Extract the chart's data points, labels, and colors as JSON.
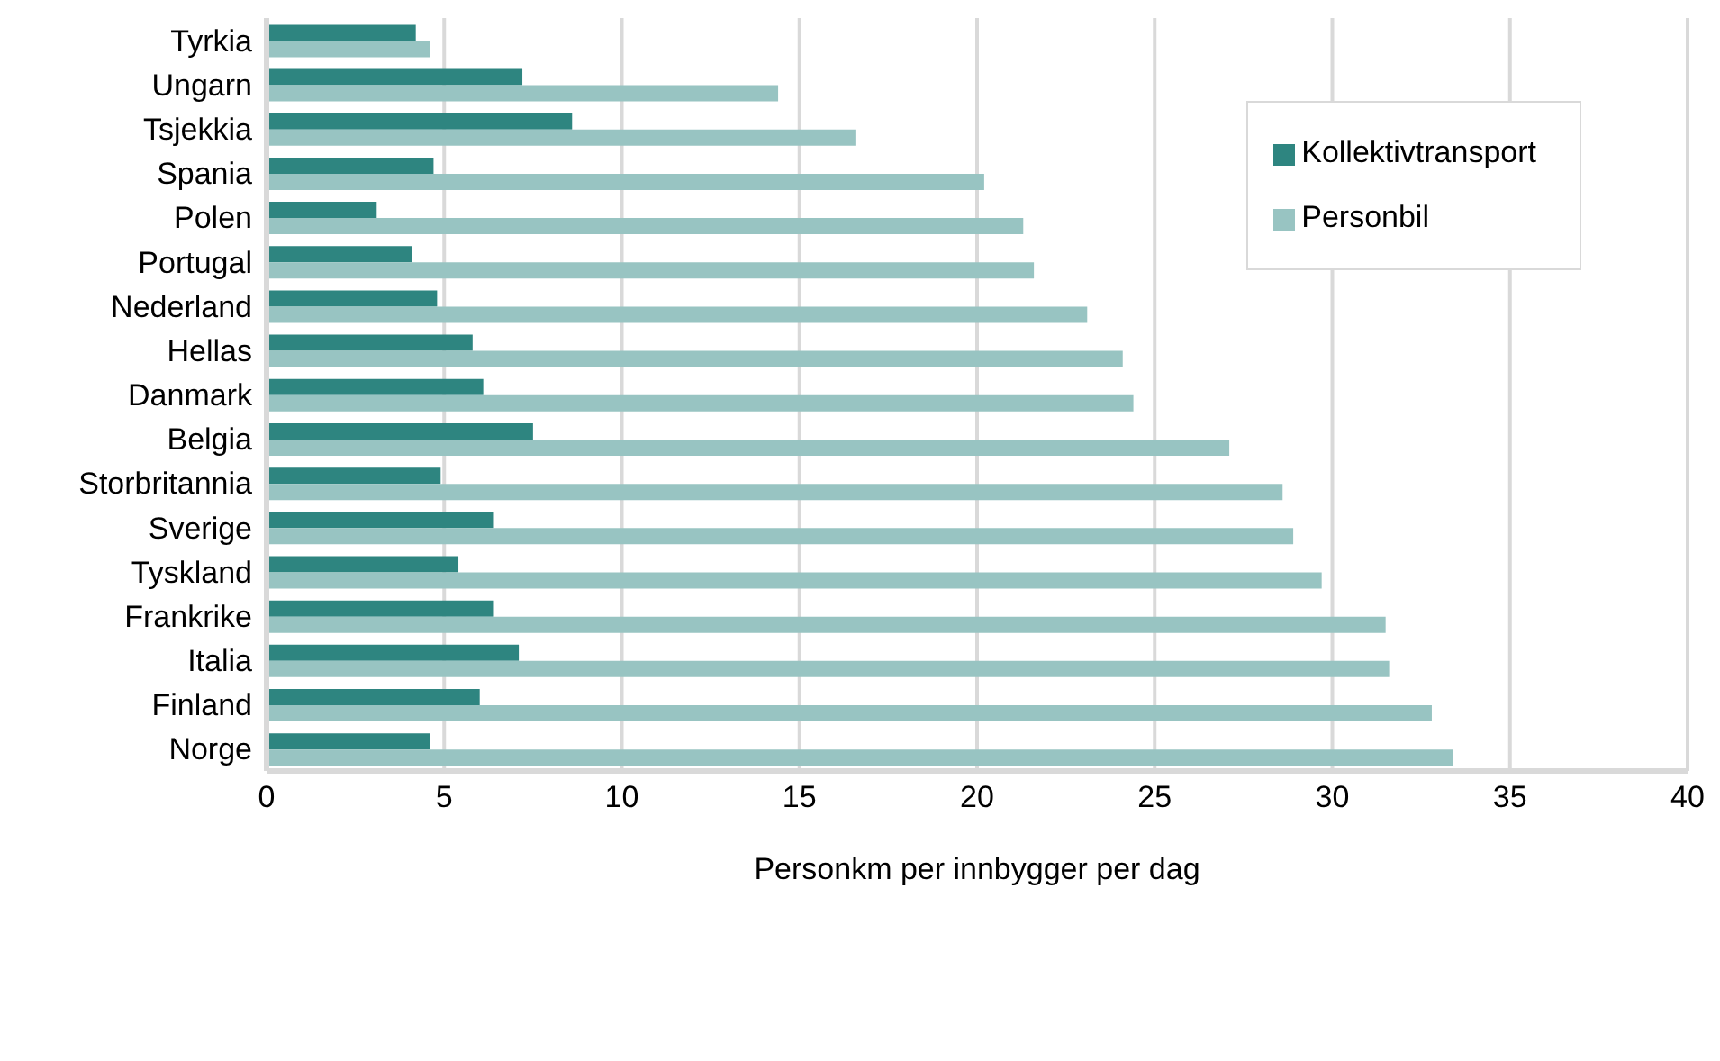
{
  "chart_data": {
    "type": "bar",
    "orientation": "horizontal",
    "xlabel": "Personkm per innbygger per dag",
    "categories": [
      "Tyrkia",
      "Ungarn",
      "Tsjekkia",
      "Spania",
      "Polen",
      "Portugal",
      "Nederland",
      "Hellas",
      "Danmark",
      "Belgia",
      "Storbritannia",
      "Sverige",
      "Tyskland",
      "Frankrike",
      "Italia",
      "Finland",
      "Norge"
    ],
    "series": [
      {
        "name": "Kollektivtransport",
        "color": "#2e8580",
        "values": [
          4.2,
          7.2,
          8.6,
          4.7,
          3.1,
          4.1,
          4.8,
          5.8,
          6.1,
          7.5,
          4.9,
          6.4,
          5.4,
          6.4,
          7.1,
          6.0,
          4.6
        ]
      },
      {
        "name": "Personbil",
        "color": "#98c4c2",
        "values": [
          4.6,
          14.4,
          16.6,
          20.2,
          21.3,
          21.6,
          23.1,
          24.1,
          24.4,
          27.1,
          28.6,
          28.9,
          29.7,
          31.5,
          31.6,
          32.8,
          33.4
        ]
      }
    ],
    "xlim": [
      0,
      40
    ],
    "xticks": [
      0,
      5,
      10,
      15,
      20,
      25,
      30,
      35,
      40
    ],
    "grid": "x",
    "legend": "top right"
  }
}
